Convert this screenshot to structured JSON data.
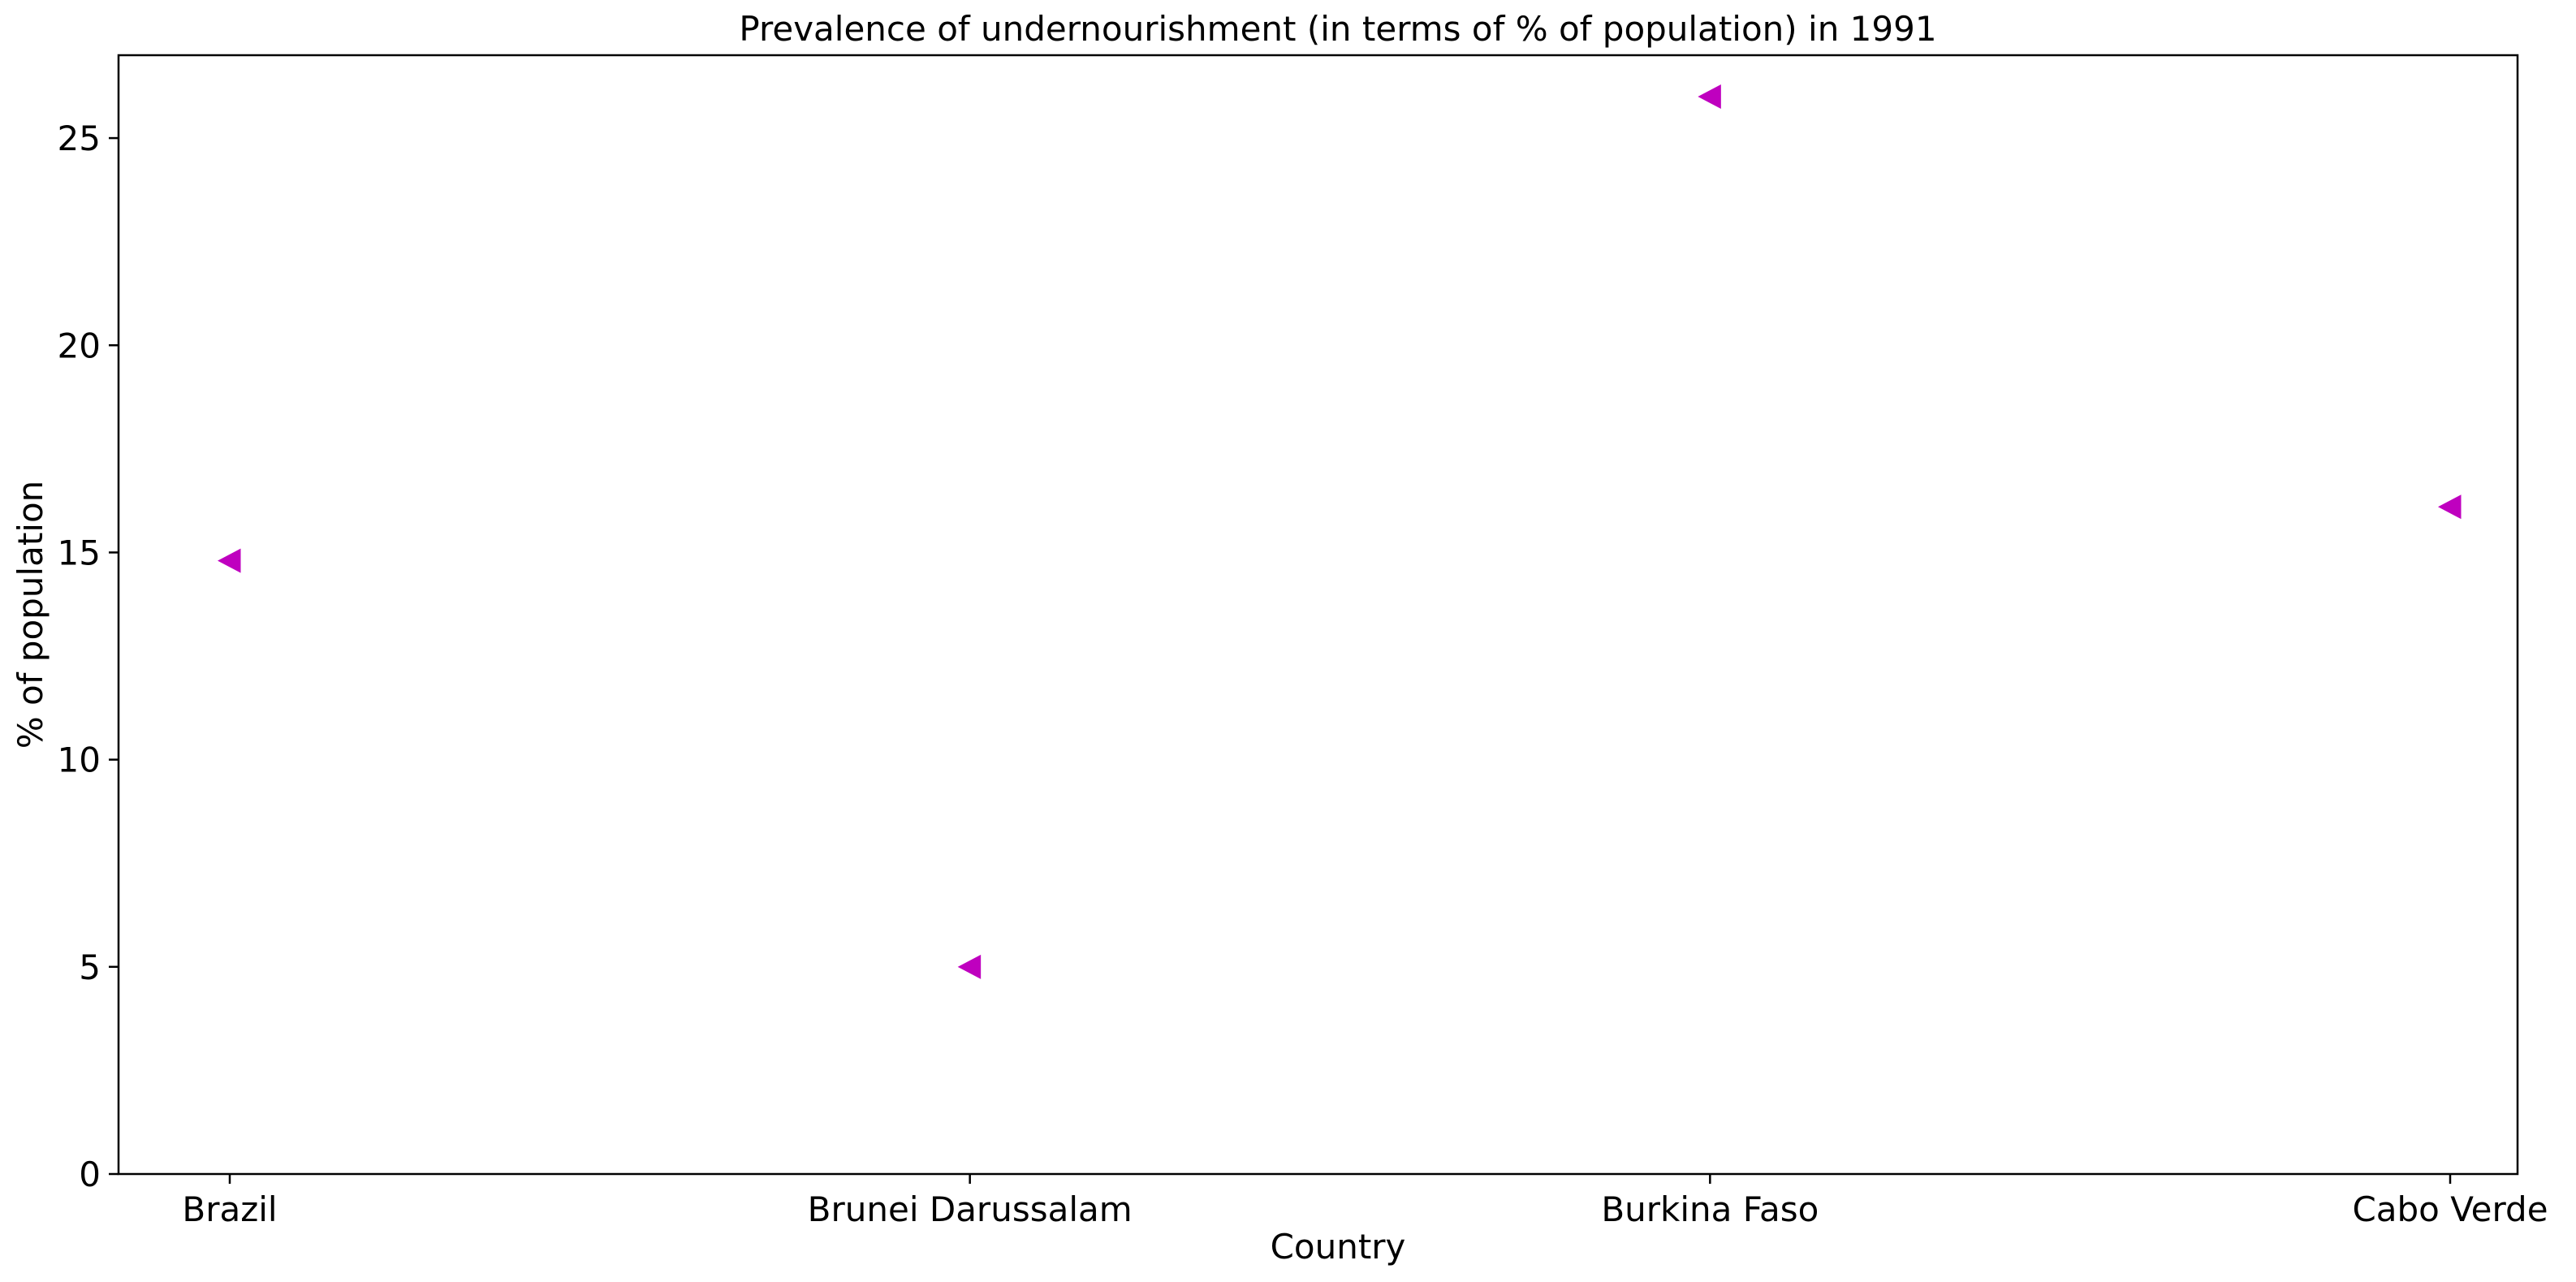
{
  "chart_data": {
    "type": "scatter",
    "title": "Prevalence of undernourishment (in terms of % of population) in 1991",
    "xlabel": "Country",
    "ylabel": "% of population",
    "categories": [
      "Brazil",
      "Brunei Darussalam",
      "Burkina Faso",
      "Cabo Verde"
    ],
    "series": [
      {
        "values": [
          14.8,
          5.0,
          26.0,
          16.1
        ]
      }
    ],
    "ylim": [
      0,
      27
    ],
    "yticks": [
      0,
      5,
      10,
      15,
      20,
      25
    ],
    "grid": false,
    "legend": "none",
    "marker": "triangle-left",
    "marker_color": "#bf00bf"
  }
}
